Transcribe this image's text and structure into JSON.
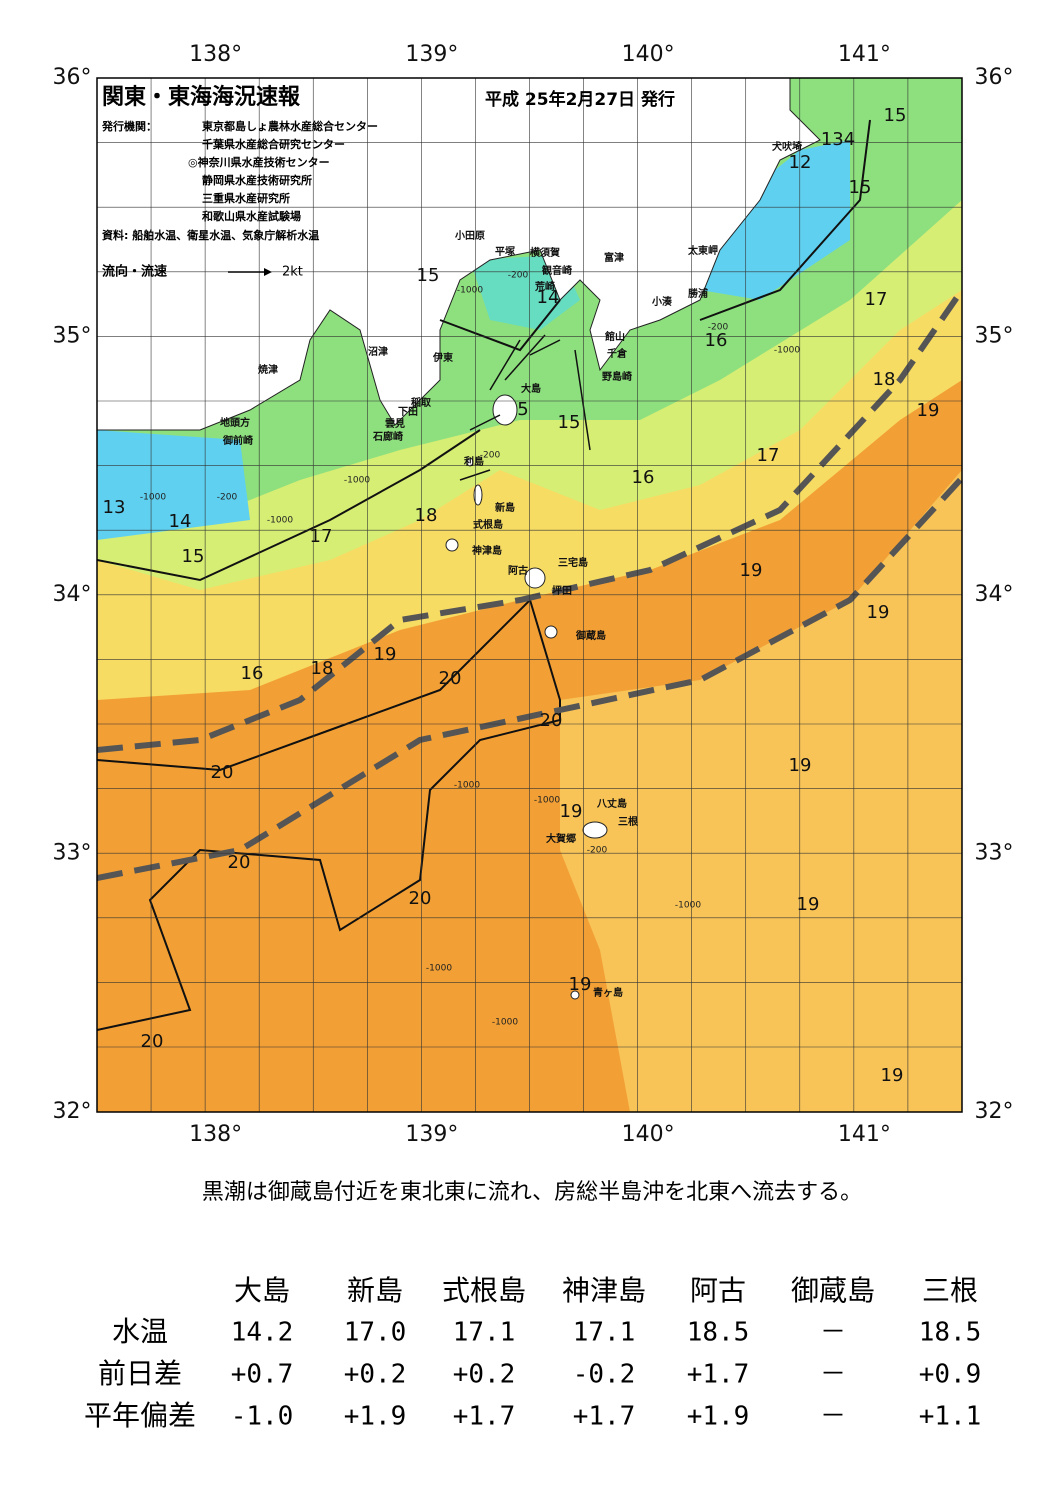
{
  "header": {
    "title": "関東・東海海況速報",
    "date": "平成 25年2月27日 発行",
    "publisher_label": "発行機関：",
    "publishers": [
      "東京都島しょ農林水産総合センター",
      "千葉県水産総合研究センター",
      "◎神奈川県水産技術センター",
      "静岡県水産技術研究所",
      "三重県水産研究所",
      "和歌山県水産試験場"
    ],
    "source": "資料: 船舶水温、衛星水温、気象庁解析水温",
    "legend_text": "流向・流速",
    "legend_scale": "2kt"
  },
  "map": {
    "longitude_labels": [
      "138°",
      "139°",
      "140°",
      "141°"
    ],
    "latitude_labels": [
      "36°",
      "35°",
      "34°",
      "33°",
      "32°"
    ],
    "isotherm_labels": [
      15,
      134,
      12,
      15,
      17,
      16,
      18,
      19,
      17,
      16,
      15,
      14,
      15,
      5,
      13,
      14,
      15,
      17,
      18,
      19,
      19,
      16,
      18,
      19,
      20,
      20,
      20,
      19,
      19,
      20,
      20,
      19,
      19,
      20,
      19
    ],
    "depth_labels": [
      "-1000",
      "-200",
      "-200",
      "-1000",
      "-1000",
      "-200",
      "-1000",
      "-1000",
      "-200",
      "-1000",
      "-1000",
      "-200",
      "-1000",
      "-1000",
      "-1000"
    ],
    "place_names": [
      "犬吠埼",
      "太東岬",
      "勝浦",
      "小湊",
      "館山",
      "千倉",
      "野島崎",
      "富津",
      "観音崎",
      "横須賀",
      "平塚",
      "小田原",
      "荒崎",
      "沼津",
      "伊東",
      "焼津",
      "稲取",
      "下田",
      "雲見",
      "石廊崎",
      "地頭方",
      "御前崎",
      "大島",
      "利島",
      "新島",
      "式根島",
      "神津島",
      "三宅島",
      "阿古",
      "坪田",
      "御蔵島",
      "八丈島",
      "三根",
      "大賀郷",
      "青ヶ島"
    ]
  },
  "caption": "黒潮は御蔵島付近を東北東に流れ、房総半島沖を北東へ流去する。",
  "table": {
    "columns": [
      "大島",
      "新島",
      "式根島",
      "神津島",
      "阿古",
      "御蔵島",
      "三根"
    ],
    "rows": [
      {
        "label": "水温",
        "values": [
          "14.2",
          "17.0",
          "17.1",
          "17.1",
          "18.5",
          "－",
          "18.5"
        ]
      },
      {
        "label": "前日差",
        "values": [
          "+0.7",
          "+0.2",
          "+0.2",
          "-0.2",
          "+1.7",
          "－",
          "+0.9"
        ]
      },
      {
        "label": "平年偏差",
        "values": [
          "-1.0",
          "+1.9",
          "+1.7",
          "+1.7",
          "+1.9",
          "－",
          "+1.1"
        ]
      }
    ]
  }
}
